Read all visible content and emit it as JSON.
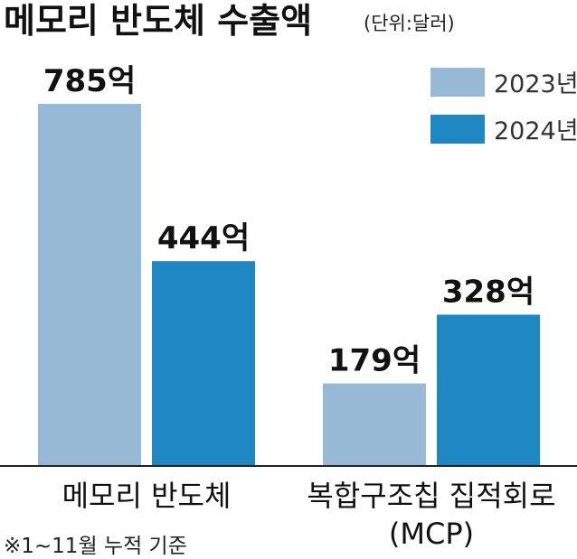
{
  "colors": {
    "y2023": "#97b9d6",
    "y2024": "#1e87c2",
    "baseline": "#222222"
  },
  "chart_data": {
    "type": "bar",
    "title": "메모리 반도체 수출액",
    "unit": "(단위:달러)",
    "categories": [
      "메모리 반도체",
      "복합구조칩 집적회로 (MCP)"
    ],
    "category_lines": [
      [
        "메모리 반도체"
      ],
      [
        "복합구조칩 집적회로",
        "(MCP)"
      ]
    ],
    "series": [
      {
        "name": "2023년",
        "values": [
          785,
          179
        ],
        "labels": [
          "785억",
          "179억"
        ]
      },
      {
        "name": "2024년",
        "values": [
          444,
          328
        ],
        "labels": [
          "444억",
          "328억"
        ]
      }
    ],
    "ylim": [
      0,
      785
    ],
    "legend": "top-right",
    "grid": false,
    "footnote": "※1~11월 누적 기준"
  }
}
